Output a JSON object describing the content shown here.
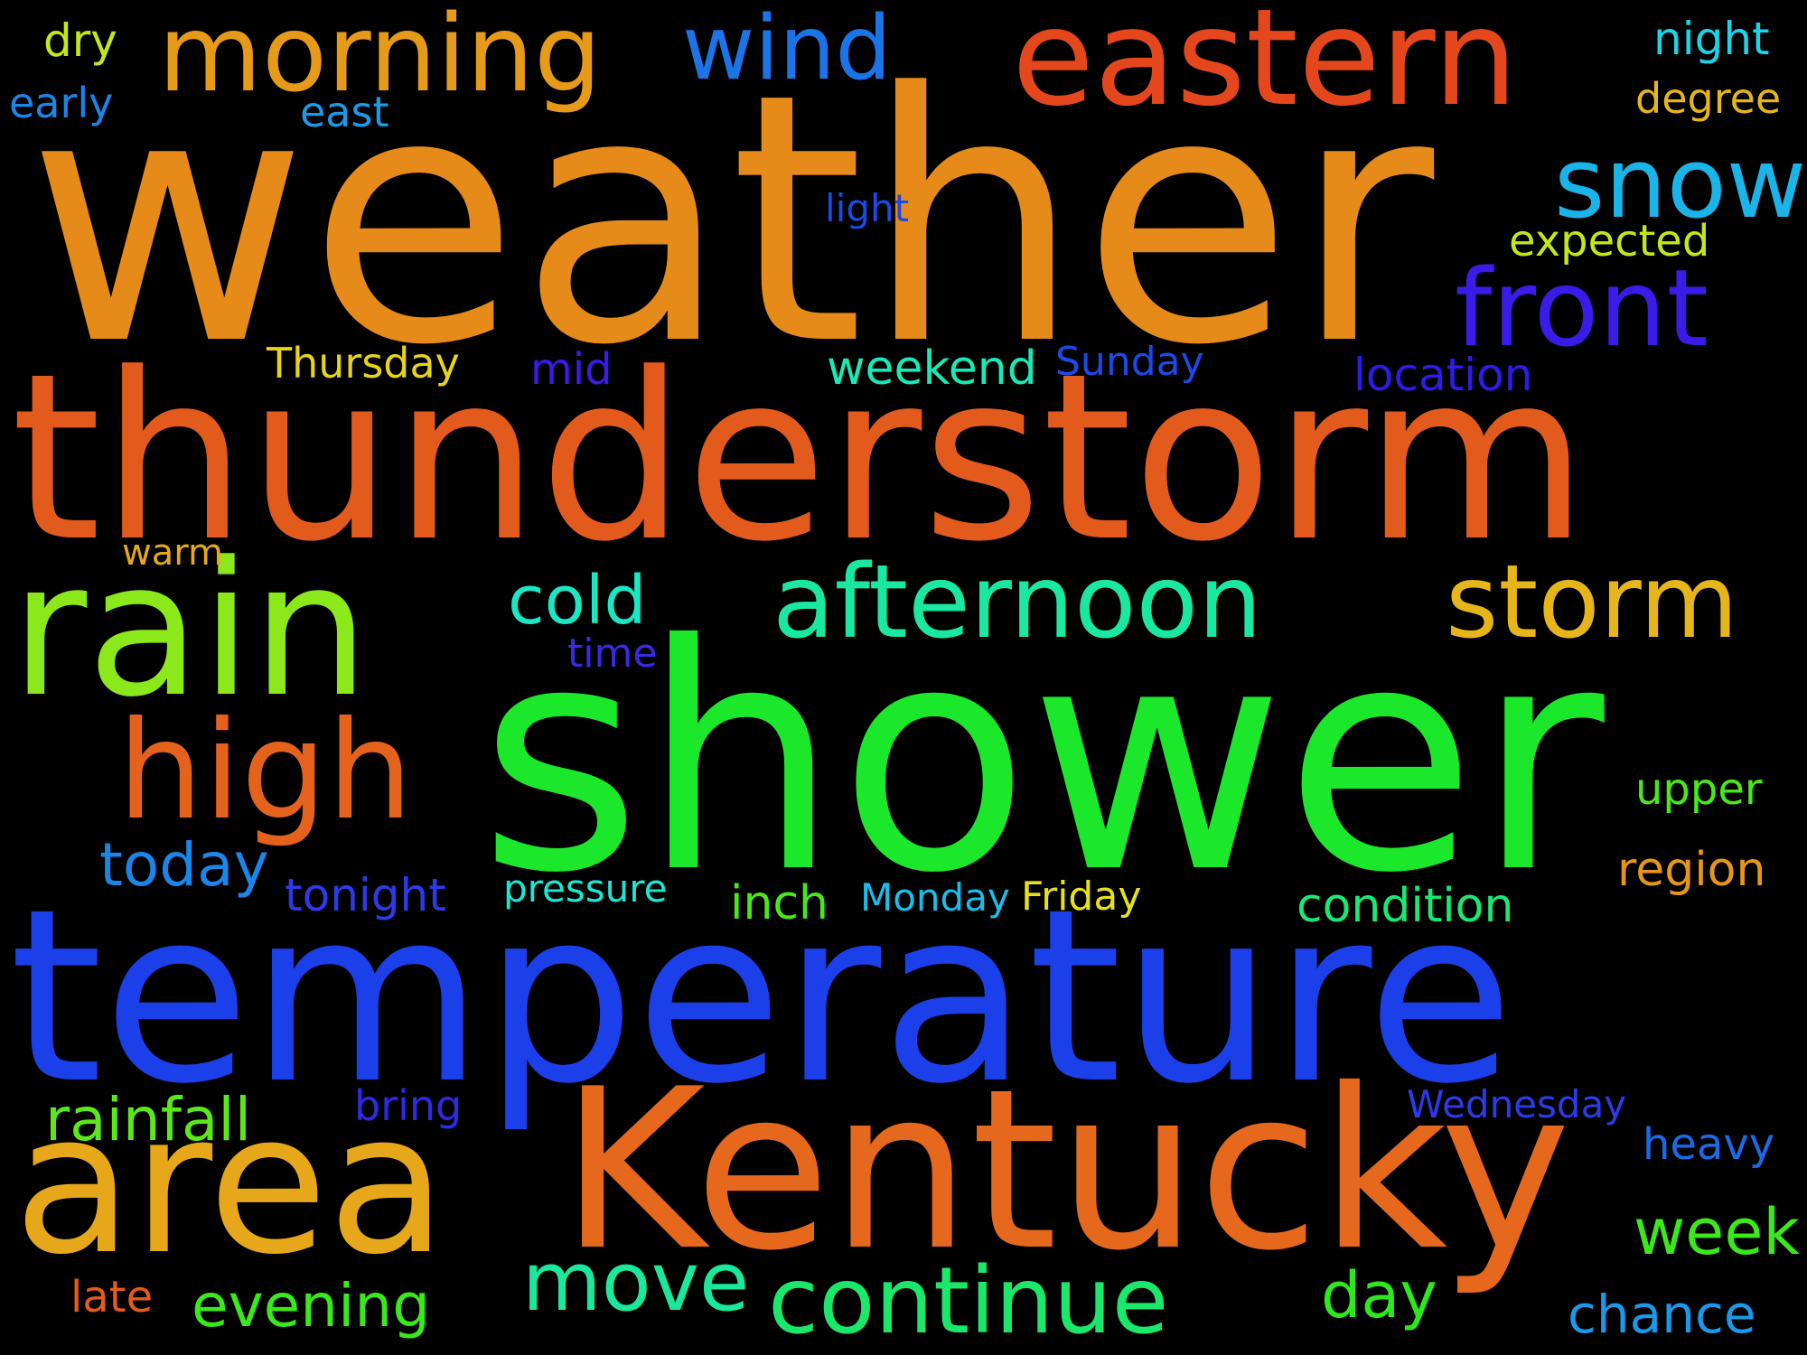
{
  "words": [
    {
      "text": "weather",
      "color": "#E68A1A"
    },
    {
      "text": "thunderstorm",
      "color": "#E35A1D"
    },
    {
      "text": "shower",
      "color": "#1BE82B"
    },
    {
      "text": "temperature",
      "color": "#1B3FE8"
    },
    {
      "text": "Kentucky",
      "color": "#E5681D"
    },
    {
      "text": "area",
      "color": "#E6A81A"
    },
    {
      "text": "rain",
      "color": "#8AE81B"
    },
    {
      "text": "eastern",
      "color": "#E5471D"
    },
    {
      "text": "morning",
      "color": "#E69A1A"
    },
    {
      "text": "afternoon",
      "color": "#1BE8A0"
    },
    {
      "text": "storm",
      "color": "#E6B51A"
    },
    {
      "text": "high",
      "color": "#E5621D"
    },
    {
      "text": "front",
      "color": "#3A1BE8"
    },
    {
      "text": "wind",
      "color": "#1B74E8"
    },
    {
      "text": "snow",
      "color": "#1BB4E8"
    },
    {
      "text": "continue",
      "color": "#1BE86A"
    },
    {
      "text": "move",
      "color": "#1BE89A"
    },
    {
      "text": "cold",
      "color": "#1BE8C2"
    },
    {
      "text": "today",
      "color": "#1B86E8"
    },
    {
      "text": "rainfall",
      "color": "#5AE81B"
    },
    {
      "text": "evening",
      "color": "#3AE81B"
    },
    {
      "text": "week",
      "color": "#3AE81B"
    },
    {
      "text": "day",
      "color": "#2FE81B"
    },
    {
      "text": "condition",
      "color": "#1BE874"
    },
    {
      "text": "chance",
      "color": "#1B98E8"
    },
    {
      "text": "region",
      "color": "#E6961A"
    },
    {
      "text": "weekend",
      "color": "#1BE8B4"
    },
    {
      "text": "location",
      "color": "#2E1BE8"
    },
    {
      "text": "tonight",
      "color": "#2E3AE8"
    },
    {
      "text": "inch",
      "color": "#4AE81B"
    },
    {
      "text": "heavy",
      "color": "#1B6AE8"
    },
    {
      "text": "upper",
      "color": "#4AE81B"
    },
    {
      "text": "expected",
      "color": "#C2E81B"
    },
    {
      "text": "Thursday",
      "color": "#E6D41A"
    },
    {
      "text": "Friday",
      "color": "#E6E21A"
    },
    {
      "text": "mid",
      "color": "#3A1BE8"
    },
    {
      "text": "Sunday",
      "color": "#1B4AE8"
    },
    {
      "text": "Monday",
      "color": "#1BBEE8"
    },
    {
      "text": "Wednesday",
      "color": "#2E3AE8"
    },
    {
      "text": "pressure",
      "color": "#1BE8D4"
    },
    {
      "text": "bring",
      "color": "#2E2AE8"
    },
    {
      "text": "light",
      "color": "#1B4AE8"
    },
    {
      "text": "warm",
      "color": "#E6A81A"
    },
    {
      "text": "time",
      "color": "#3A2AE8"
    },
    {
      "text": "late",
      "color": "#E55A1D"
    },
    {
      "text": "night",
      "color": "#1BD4E8"
    },
    {
      "text": "degree",
      "color": "#E6B51A"
    },
    {
      "text": "dry",
      "color": "#C2E81B"
    },
    {
      "text": "early",
      "color": "#1B86E8"
    },
    {
      "text": "east",
      "color": "#1B9AE8"
    }
  ]
}
